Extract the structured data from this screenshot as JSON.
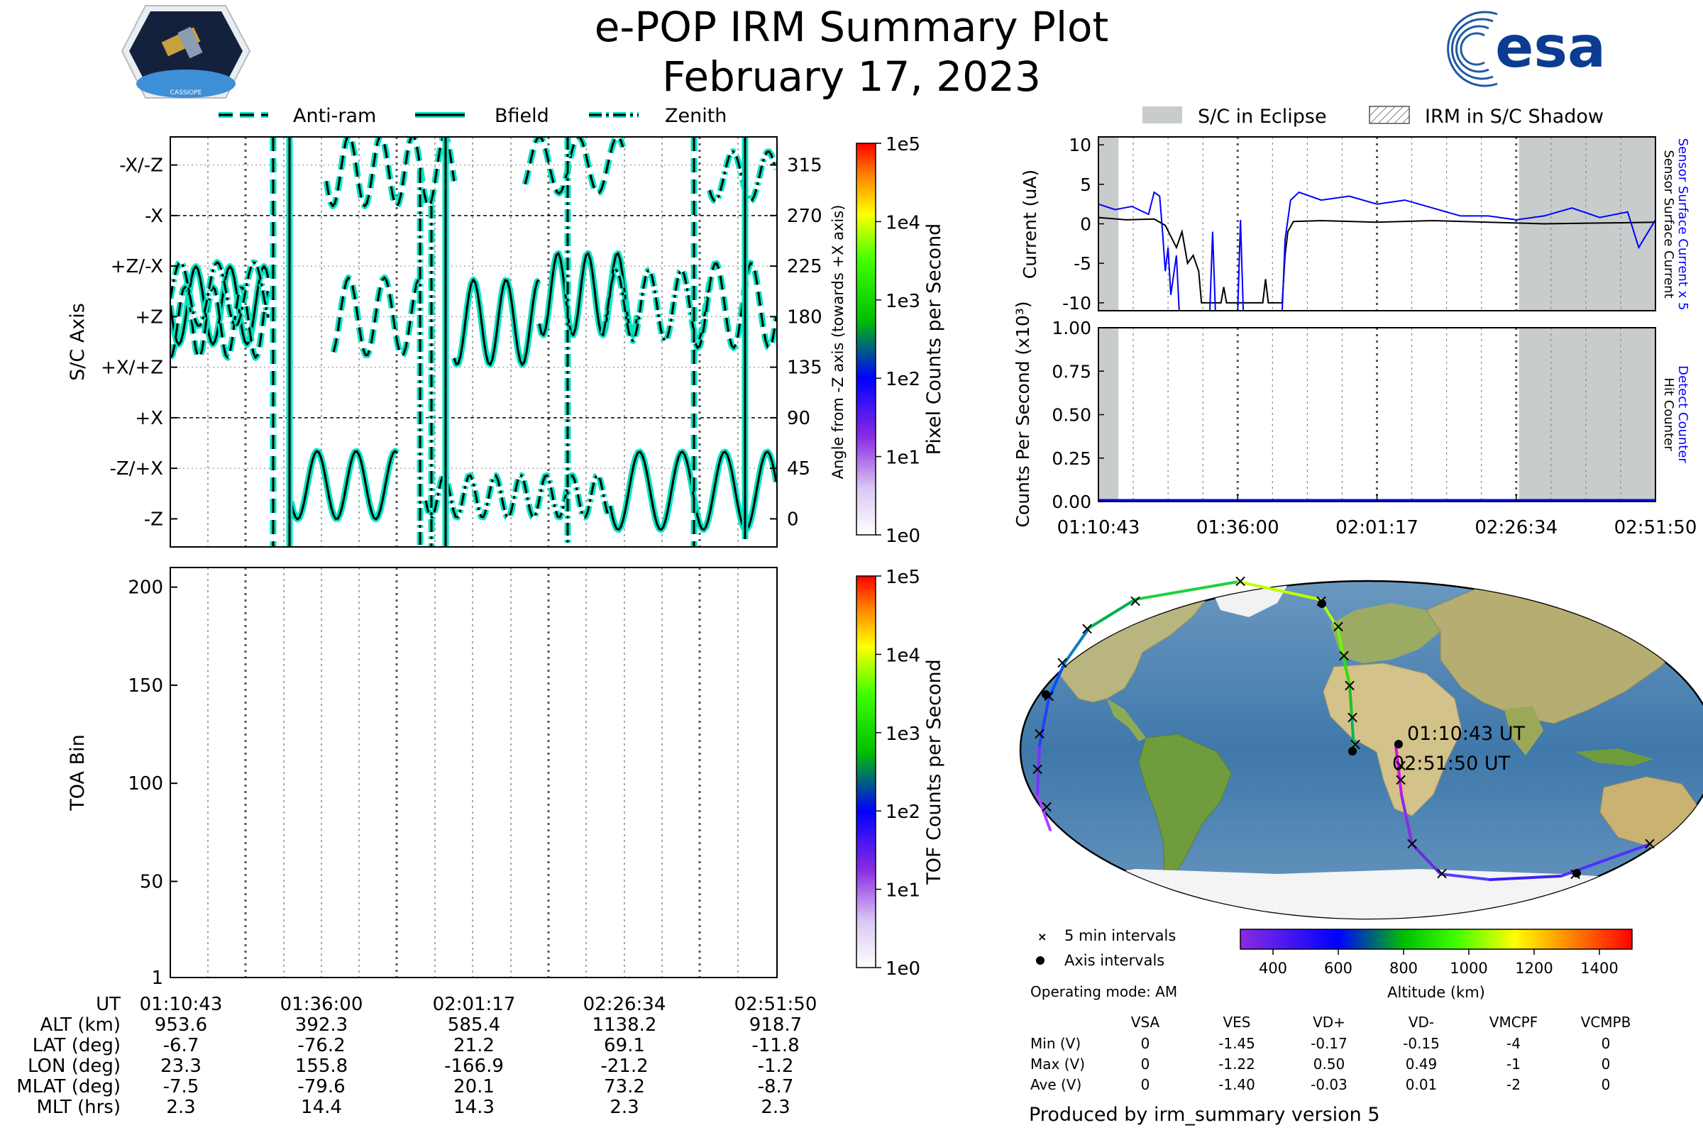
{
  "title": "e-POP IRM Summary Plot",
  "date": "February 17, 2023",
  "logos": {
    "left_text": "CASSIOPE",
    "right_text": "esa"
  },
  "colors": {
    "trace": "#00e5c0",
    "eclipse": "#c8cccc",
    "blue_series": "#0000ff",
    "black_series": "#000000"
  },
  "legend_attitude": [
    "Anti-ram",
    "Bfield",
    "Zenith"
  ],
  "legend_eclipse": [
    "S/C in Eclipse",
    "IRM in S/C Shadow"
  ],
  "chart_data": [
    {
      "type": "line",
      "id": "attitude",
      "ylabel": "S/C Axis",
      "y2label": "Angle from -Z axis (towards +X axis)",
      "y_ticks": [
        "-X/-Z",
        "-X",
        "+Z/-X",
        "+Z",
        "+X/+Z",
        "+X",
        "-Z/+X",
        "-Z"
      ],
      "y2_ticks": [
        "315",
        "270",
        "225",
        "180",
        "135",
        "90",
        "45",
        "0"
      ],
      "ylim": [
        -25,
        340
      ],
      "series": [
        {
          "name": "Anti-ram"
        },
        {
          "name": "Bfield"
        },
        {
          "name": "Zenith"
        }
      ],
      "colorbar": {
        "label": "Pixel Counts per Second",
        "ticks": [
          "1e5",
          "1e4",
          "1e3",
          "1e2",
          "1e1",
          "1e0"
        ]
      }
    },
    {
      "type": "heatmap",
      "id": "toa",
      "ylabel": "TOA Bin",
      "y_ticks": [
        "200",
        "150",
        "100",
        "50",
        "1"
      ],
      "ylim": [
        1,
        210
      ],
      "colorbar": {
        "label": "TOF Counts per Second",
        "ticks": [
          "1e5",
          "1e4",
          "1e3",
          "1e2",
          "1e1",
          "1e0"
        ]
      }
    },
    {
      "type": "line",
      "id": "current",
      "ylabel": "Current (uA)",
      "y_ticks": [
        "10",
        "5",
        "0",
        "-5",
        "-10"
      ],
      "ylim": [
        -11,
        11
      ],
      "right_label_blue": "Sensor Surface Current x 5",
      "right_label_black": "Sensor Surface Current",
      "eclipse": [
        [
          0,
          0.036
        ],
        [
          0.755,
          1.0
        ]
      ]
    },
    {
      "type": "line",
      "id": "counts",
      "ylabel": "Counts Per Second (x10³)",
      "y_ticks": [
        "1.00",
        "0.75",
        "0.50",
        "0.25",
        "0.00"
      ],
      "ylim": [
        0,
        1
      ],
      "right_label_blue": "Detect Counter",
      "right_label_black": "Hit Counter",
      "x_ticks": [
        "01:10:43",
        "01:36:00",
        "02:01:17",
        "02:26:34",
        "02:51:50"
      ]
    }
  ],
  "ephemeris": {
    "labels": [
      "UT",
      "ALT (km)",
      "LAT (deg)",
      "LON (deg)",
      "MLAT (deg)",
      "MLT (hrs)"
    ],
    "columns": [
      [
        "01:10:43",
        "953.6",
        "-6.7",
        "23.3",
        "-7.5",
        "2.3"
      ],
      [
        "01:36:00",
        "392.3",
        "-76.2",
        "155.8",
        "-79.6",
        "14.4"
      ],
      [
        "02:01:17",
        "585.4",
        "21.2",
        "-166.9",
        "20.1",
        "14.3"
      ],
      [
        "02:26:34",
        "1138.2",
        "69.1",
        "-21.2",
        "73.2",
        "2.3"
      ],
      [
        "02:51:50",
        "918.7",
        "-11.8",
        "-1.2",
        "-8.7",
        "2.3"
      ]
    ]
  },
  "map": {
    "start_label": "01:10:43 UT",
    "end_label": "02:51:50 UT",
    "legend_cross": "5 min intervals",
    "legend_dot": "Axis intervals",
    "altitude_label": "Altitude (km)",
    "altitude_ticks": [
      "400",
      "600",
      "800",
      "1000",
      "1200",
      "1400"
    ]
  },
  "operating_mode": "Operating mode: AM",
  "voltages": {
    "headers": [
      "VSA",
      "VES",
      "VD+",
      "VD-",
      "VMCPF",
      "VCMPB"
    ],
    "rows": [
      {
        "label": "Min (V)",
        "values": [
          "0",
          "-1.45",
          "-0.17",
          "-0.15",
          "-4",
          "0"
        ]
      },
      {
        "label": "Max (V)",
        "values": [
          "0",
          "-1.22",
          "0.50",
          "0.49",
          "-1",
          "0"
        ]
      },
      {
        "label": "Ave (V)",
        "values": [
          "0",
          "-1.40",
          "-0.03",
          "0.01",
          "-2",
          "0"
        ]
      }
    ]
  },
  "footer": "Produced by irm_summary version 5"
}
